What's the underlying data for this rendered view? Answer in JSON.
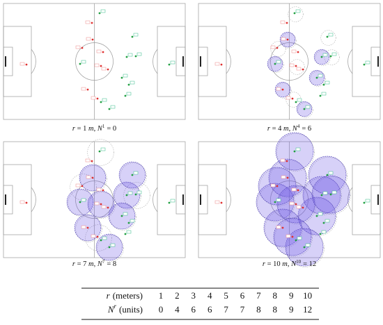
{
  "caption_symbols": {
    "r": "r",
    "eq": "=",
    "unit": "m",
    "sep": ",",
    "n": "N"
  },
  "panels": [
    {
      "r": 1,
      "sup": "1",
      "N": 0
    },
    {
      "r": 4,
      "sup": "4",
      "N": 6
    },
    {
      "r": 7,
      "sup": "7",
      "N": 8
    },
    {
      "r": 10,
      "sup": "10",
      "N": 12
    }
  ],
  "table": {
    "rows": [
      {
        "symbol": "r",
        "unit": "(meters)",
        "values": [
          1,
          2,
          3,
          4,
          5,
          6,
          7,
          8,
          9,
          10
        ]
      },
      {
        "symbol": "N",
        "sup": "r",
        "unit": "(units)",
        "values": [
          0,
          4,
          6,
          6,
          7,
          7,
          8,
          8,
          9,
          12
        ]
      }
    ]
  }
}
